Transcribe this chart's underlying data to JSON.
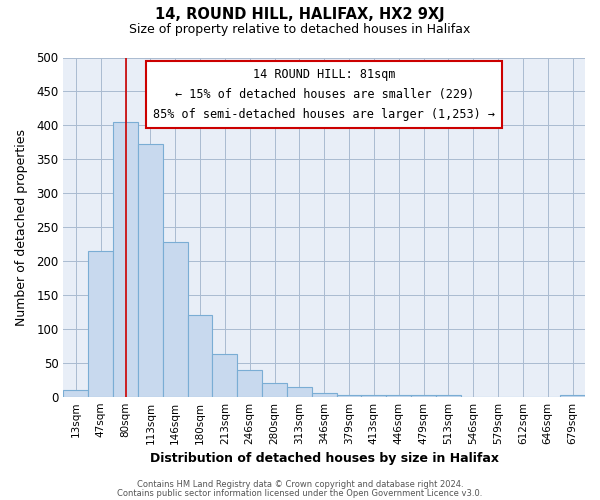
{
  "title": "14, ROUND HILL, HALIFAX, HX2 9XJ",
  "subtitle": "Size of property relative to detached houses in Halifax",
  "xlabel": "Distribution of detached houses by size in Halifax",
  "ylabel": "Number of detached properties",
  "bin_labels": [
    "13sqm",
    "47sqm",
    "80sqm",
    "113sqm",
    "146sqm",
    "180sqm",
    "213sqm",
    "246sqm",
    "280sqm",
    "313sqm",
    "346sqm",
    "379sqm",
    "413sqm",
    "446sqm",
    "479sqm",
    "513sqm",
    "546sqm",
    "579sqm",
    "612sqm",
    "646sqm",
    "679sqm"
  ],
  "bar_heights": [
    10,
    215,
    405,
    372,
    228,
    120,
    63,
    40,
    20,
    14,
    5,
    3,
    3,
    3,
    3,
    3,
    0,
    0,
    0,
    0,
    3
  ],
  "bar_color": "#c8d9ee",
  "bar_edge_color": "#7aadd4",
  "vline_x": 2,
  "vline_color": "#cc0000",
  "annotation_title": "14 ROUND HILL: 81sqm",
  "annotation_line1": "← 15% of detached houses are smaller (229)",
  "annotation_line2": "85% of semi-detached houses are larger (1,253) →",
  "annotation_box_color": "#ffffff",
  "annotation_box_edge": "#cc0000",
  "ylim": [
    0,
    500
  ],
  "footer1": "Contains HM Land Registry data © Crown copyright and database right 2024.",
  "footer2": "Contains public sector information licensed under the Open Government Licence v3.0."
}
